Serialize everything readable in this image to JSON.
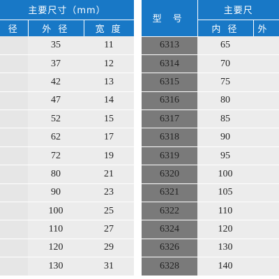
{
  "left_table": {
    "header_title": "主要尺寸（mm）",
    "col_headers": [
      "径",
      "外 径",
      "宽 度"
    ],
    "rows": [
      {
        "outer": "35",
        "width": "11"
      },
      {
        "outer": "37",
        "width": "12"
      },
      {
        "outer": "42",
        "width": "13"
      },
      {
        "outer": "47",
        "width": "14"
      },
      {
        "outer": "52",
        "width": "15"
      },
      {
        "outer": "62",
        "width": "17"
      },
      {
        "outer": "72",
        "width": "19"
      },
      {
        "outer": "80",
        "width": "21"
      },
      {
        "outer": "90",
        "width": "23"
      },
      {
        "outer": "100",
        "width": "25"
      },
      {
        "outer": "110",
        "width": "27"
      },
      {
        "outer": "120",
        "width": "29"
      },
      {
        "outer": "130",
        "width": "31"
      }
    ]
  },
  "right_table": {
    "model_header": "型  号",
    "header_title": "主要尺",
    "col_headers": [
      "内 径",
      "外"
    ],
    "rows": [
      {
        "model": "6313",
        "inner": "65"
      },
      {
        "model": "6314",
        "inner": "70"
      },
      {
        "model": "6315",
        "inner": "75"
      },
      {
        "model": "6316",
        "inner": "80"
      },
      {
        "model": "6317",
        "inner": "85"
      },
      {
        "model": "6318",
        "inner": "90"
      },
      {
        "model": "6319",
        "inner": "95"
      },
      {
        "model": "6320",
        "inner": "100"
      },
      {
        "model": "6321",
        "inner": "105"
      },
      {
        "model": "6322",
        "inner": "110"
      },
      {
        "model": "6324",
        "inner": "120"
      },
      {
        "model": "6326",
        "inner": "130"
      },
      {
        "model": "6328",
        "inner": "140"
      }
    ]
  },
  "colors": {
    "header_blue": "#1878c6",
    "model_cell_gray": "#7a7a7a",
    "data_cell_gray": "#ececec"
  }
}
